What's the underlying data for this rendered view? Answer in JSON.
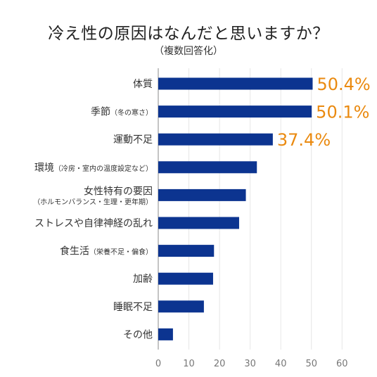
{
  "chart_data": {
    "type": "bar",
    "orientation": "horizontal",
    "title": "冷え性の原因はなんだと思いますか？",
    "subtitle": "（複数回答化）",
    "categories": [
      {
        "main": "体質",
        "note": ""
      },
      {
        "main": "季節",
        "note": "（冬の寒さ）"
      },
      {
        "main": "運動不足",
        "note": ""
      },
      {
        "main": "環境",
        "note": "（冷房・室内の温度設定など）"
      },
      {
        "main": "女性特有の要因",
        "note": "（ホルモンバランス・生理・更年期）"
      },
      {
        "main": "ストレスや自律神経の乱れ",
        "note": ""
      },
      {
        "main": "食生活",
        "note": "（栄養不足・偏食）"
      },
      {
        "main": "加齢",
        "note": ""
      },
      {
        "main": "睡眠不足",
        "note": ""
      },
      {
        "main": "その他",
        "note": ""
      }
    ],
    "values": [
      50.4,
      50.1,
      37.4,
      32.2,
      28.6,
      26.4,
      18.2,
      17.9,
      14.9,
      4.8
    ],
    "data_labels": [
      "50.4%",
      "50.1%",
      "37.4%",
      "",
      "",
      "",
      "",
      "",
      "",
      ""
    ],
    "x_ticks": [
      "0",
      "10",
      "20",
      "30",
      "40",
      "50",
      "60"
    ],
    "xlim": [
      0,
      60
    ],
    "grid": true,
    "colors": {
      "bar": "#0c3490",
      "highlight_label": "#ea8a10",
      "grid": "#e6e6e6",
      "axis": "#8a8a8a"
    }
  }
}
